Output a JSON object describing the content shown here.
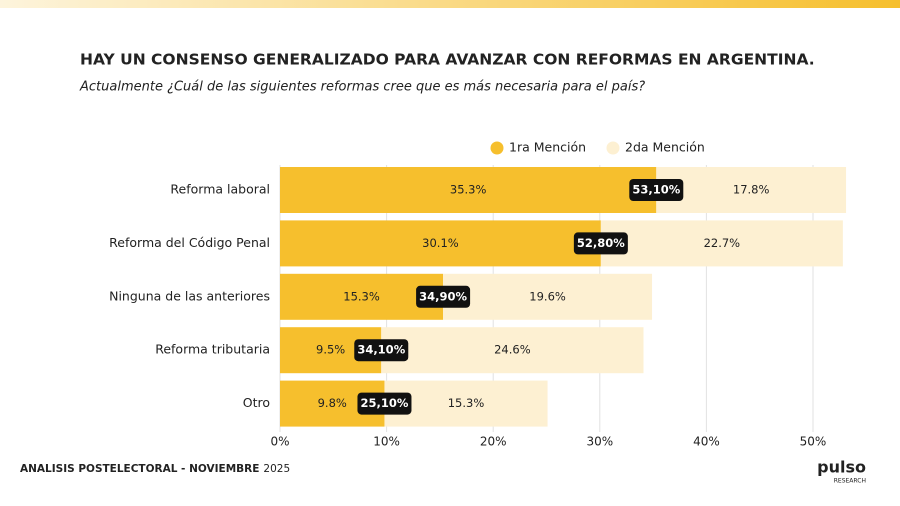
{
  "chart_data": {
    "type": "stacked-bar-horizontal",
    "title": "HAY UN CONSENSO GENERALIZADO PARA AVANZAR CON REFORMAS EN ARGENTINA.",
    "subtitle": "Actualmente ¿Cuál de las siguientes reformas cree que es más necesaria para el país?",
    "categories": [
      "Reforma laboral",
      "Reforma del Código Penal",
      "Ninguna de las anteriores",
      "Reforma tributaria",
      "Otro"
    ],
    "series": [
      {
        "name": "1ra Mención",
        "color": "#f6bf2d",
        "values": [
          35.3,
          30.1,
          15.3,
          9.5,
          9.8
        ],
        "value_labels": [
          "35.3%",
          "30.1%",
          "15.3%",
          "9.5%",
          "9.8%"
        ]
      },
      {
        "name": "2da Mención",
        "color": "#fdf0d2",
        "values": [
          17.8,
          22.7,
          19.6,
          24.6,
          15.3
        ],
        "value_labels": [
          "17.8%",
          "22.7%",
          "19.6%",
          "24.6%",
          "15.3%"
        ]
      }
    ],
    "totals": [
      {
        "value": 53.1,
        "label": "53,10%"
      },
      {
        "value": 52.8,
        "label": "52,80%"
      },
      {
        "value": 34.9,
        "label": "34,90%"
      },
      {
        "value": 34.1,
        "label": "34,10%"
      },
      {
        "value": 25.1,
        "label": "25,10%"
      }
    ],
    "xlim": [
      0,
      50
    ],
    "xticks": [
      {
        "value": 0,
        "label": "0%"
      },
      {
        "value": 10,
        "label": "10%"
      },
      {
        "value": 20,
        "label": "20%"
      },
      {
        "value": 30,
        "label": "30%"
      },
      {
        "value": 40,
        "label": "40%"
      },
      {
        "value": 50,
        "label": "50%"
      }
    ],
    "grid": true,
    "legend": "top-right"
  },
  "footer": {
    "label": "ANALISIS POSTELECTORAL - NOVIEMBRE",
    "year": "2025"
  },
  "brand": {
    "name": "pulso",
    "tagline": "RESEARCH"
  }
}
